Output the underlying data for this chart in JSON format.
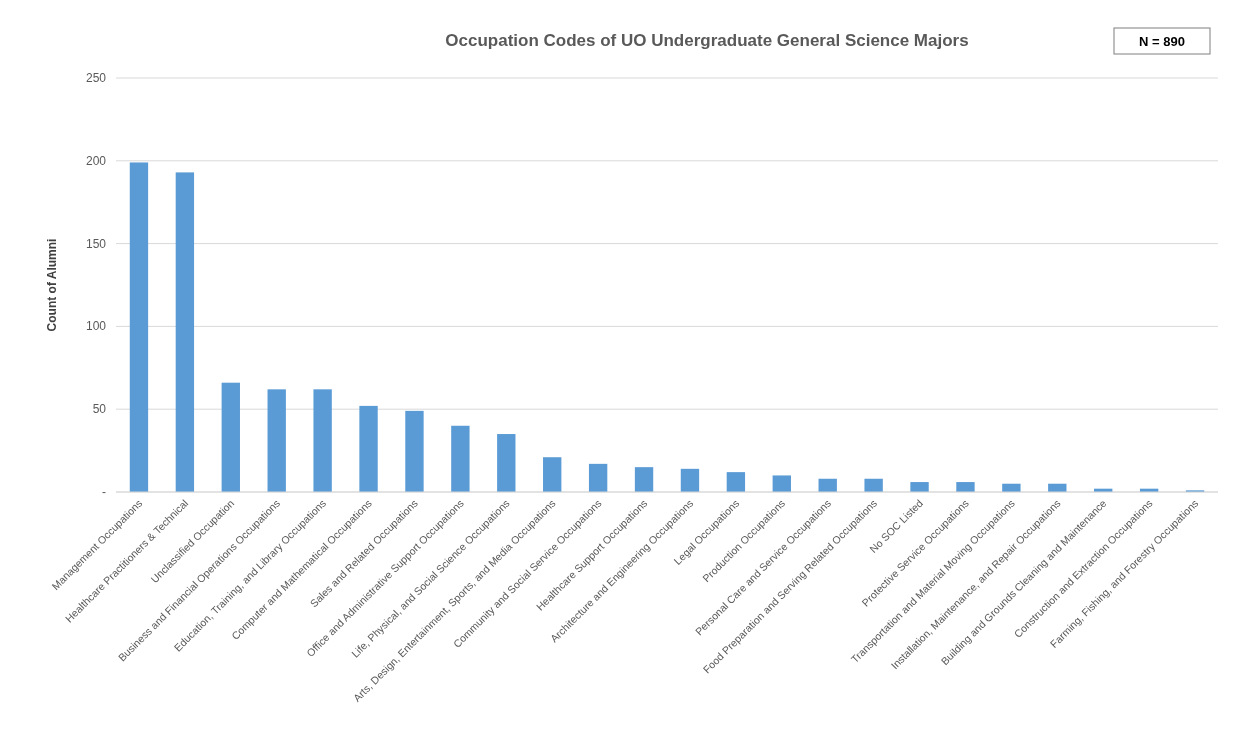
{
  "chart_data": {
    "type": "bar",
    "title": "Occupation Codes of UO Undergraduate General Science Majors",
    "ylabel": "Count of Alumni",
    "annotations": [
      "N = 890"
    ],
    "categories": [
      "Management Occupations",
      "Healthcare Practitioners & Technical",
      "Unclassified Occupation",
      "Business and Financial Operations Occupations",
      "Education, Training, and Library Occupations",
      "Computer and Mathematical Occupations",
      "Sales and Related Occupations",
      "Office and Administrative Support Occupations",
      "Life, Physical, and Social Science Occupations",
      "Arts, Design, Entertainment, Sports, and Media Occupations",
      "Community and Social Service Occupations",
      "Healthcare Support Occupations",
      "Architecture and Engineering Occupations",
      "Legal Occupations",
      "Production Occupations",
      "Personal Care and Service Occupations",
      "Food Preparation and Serving Related Occupations",
      "No SOC Listed",
      "Protective Service Occupations",
      "Transportation and Material Moving Occupations",
      "Installation, Maintenance, and Repair Occupations",
      "Building and Grounds Cleaning and Maintenance",
      "Construction and Extraction Occupations",
      "Farming, Fishing, and Forestry Occupations"
    ],
    "values": [
      199,
      193,
      66,
      62,
      62,
      52,
      49,
      40,
      35,
      21,
      17,
      15,
      14,
      12,
      10,
      8,
      8,
      6,
      6,
      5,
      5,
      2,
      2,
      1
    ],
    "color": "#5b9bd5",
    "ylim": [
      0,
      250
    ],
    "yticks": [
      {
        "value": 0,
        "label": "-"
      },
      50,
      100,
      150,
      200,
      250
    ],
    "grid": "y"
  }
}
